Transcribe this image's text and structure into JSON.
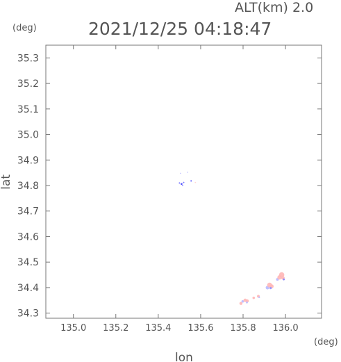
{
  "header": {
    "alt_label": "ALT(km)  2.0",
    "timestamp": "2021/12/25 04:18:47"
  },
  "chart_data": {
    "type": "scatter",
    "title": "2021/12/25 04:18:47",
    "subtitle": "ALT(km)  2.0",
    "xlabel": "lon",
    "ylabel": "lat",
    "x_unit": "(deg)",
    "y_unit": "(deg)",
    "xlim": [
      134.87,
      136.17
    ],
    "ylim": [
      34.28,
      35.35
    ],
    "x_ticks": [
      135.0,
      135.2,
      135.4,
      135.6,
      135.8,
      136.0
    ],
    "x_tick_labels": [
      "135.0",
      "135.2",
      "135.4",
      "135.6",
      "135.8",
      "136.0"
    ],
    "y_ticks": [
      34.3,
      34.4,
      34.5,
      34.6,
      34.7,
      34.8,
      34.9,
      35.0,
      35.1,
      35.2,
      35.3
    ],
    "y_tick_labels": [
      "34.3",
      "34.4",
      "34.5",
      "34.6",
      "34.7",
      "34.8",
      "34.9",
      "35.0",
      "35.1",
      "35.2",
      "35.3"
    ],
    "grid": false,
    "points": [
      {
        "lon": 135.505,
        "lat": 34.848,
        "color": "#b8b8ff",
        "r": 0.8
      },
      {
        "lon": 135.538,
        "lat": 34.852,
        "color": "#b8b8ff",
        "r": 0.8
      },
      {
        "lon": 135.5,
        "lat": 34.81,
        "color": "#6060ff",
        "r": 1.0
      },
      {
        "lon": 135.51,
        "lat": 34.806,
        "color": "#3a3aff",
        "r": 1.3
      },
      {
        "lon": 135.515,
        "lat": 34.8,
        "color": "#9090ff",
        "r": 1.0
      },
      {
        "lon": 135.52,
        "lat": 34.812,
        "color": "#7070ff",
        "r": 1.0
      },
      {
        "lon": 135.555,
        "lat": 34.818,
        "color": "#4040ff",
        "r": 1.0
      },
      {
        "lon": 135.575,
        "lat": 34.812,
        "color": "#ffd0d0",
        "r": 0.9
      },
      {
        "lon": 135.79,
        "lat": 34.338,
        "color": "#ffb6b6",
        "r": 2.2
      },
      {
        "lon": 135.798,
        "lat": 34.346,
        "color": "#b8b8ff",
        "r": 1.8
      },
      {
        "lon": 135.81,
        "lat": 34.35,
        "color": "#ffb6b6",
        "r": 2.5
      },
      {
        "lon": 135.82,
        "lat": 34.348,
        "color": "#ffb6b6",
        "r": 2.2
      },
      {
        "lon": 135.818,
        "lat": 34.342,
        "color": "#b8b8ff",
        "r": 1.4
      },
      {
        "lon": 135.85,
        "lat": 34.36,
        "color": "#ffb6b6",
        "r": 1.8
      },
      {
        "lon": 135.872,
        "lat": 34.366,
        "color": "#ffb6b6",
        "r": 2.0
      },
      {
        "lon": 135.876,
        "lat": 34.362,
        "color": "#b8b8ff",
        "r": 1.2
      },
      {
        "lon": 135.915,
        "lat": 34.4,
        "color": "#b8b8ff",
        "r": 2.6
      },
      {
        "lon": 135.925,
        "lat": 34.41,
        "color": "#ffb6b6",
        "r": 3.5
      },
      {
        "lon": 135.935,
        "lat": 34.405,
        "color": "#ffb6b6",
        "r": 2.8
      },
      {
        "lon": 135.93,
        "lat": 34.398,
        "color": "#9090ff",
        "r": 1.6
      },
      {
        "lon": 135.962,
        "lat": 34.432,
        "color": "#b8b8ff",
        "r": 2.0
      },
      {
        "lon": 135.972,
        "lat": 34.44,
        "color": "#ffb6b6",
        "r": 3.2
      },
      {
        "lon": 135.982,
        "lat": 34.45,
        "color": "#ffb6b6",
        "r": 3.8
      },
      {
        "lon": 135.988,
        "lat": 34.438,
        "color": "#ffb6b6",
        "r": 2.5
      },
      {
        "lon": 135.992,
        "lat": 34.432,
        "color": "#8080ff",
        "r": 1.4
      }
    ]
  }
}
